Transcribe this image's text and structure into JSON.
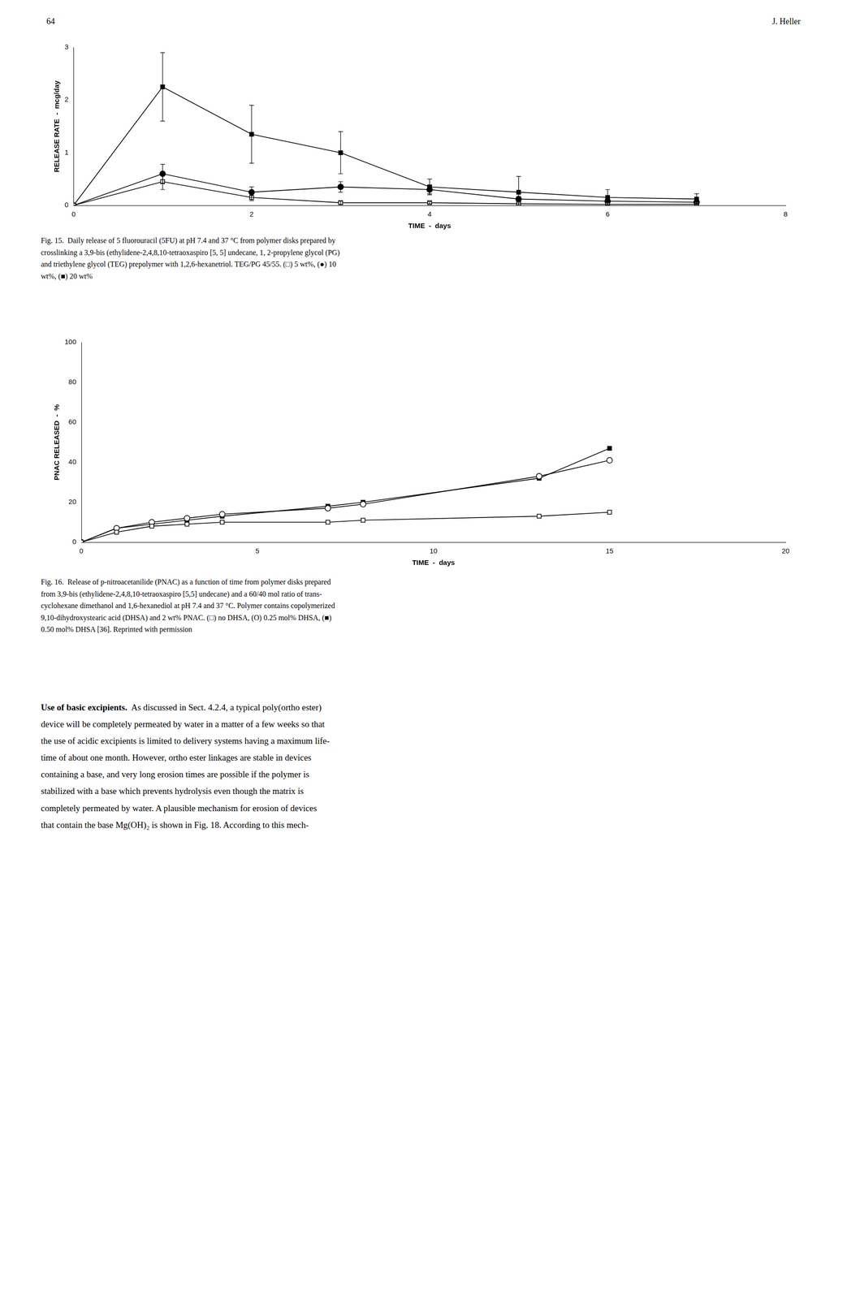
{
  "background_color": "#ffffff",
  "text_color": "#000000",
  "page_number": "64",
  "page_author": "J. Heller",
  "chart_data": [
    {
      "type": "line",
      "xlabel": "TIME  -  days",
      "ylabel": "RELEASE RATE  -  mcg/day",
      "xlim": [
        0,
        8
      ],
      "ylim": [
        0,
        3
      ],
      "xticks": [
        0,
        2,
        4,
        6,
        8
      ],
      "yticks": [
        0,
        1,
        2,
        3
      ],
      "grid": false,
      "caption": [
        "Fig. 15.  Daily release of 5 fluorouracil (5FU) at pH 7.4 and 37 °C from polymer disks prepared by",
        "crosslinking a 3,9-bis (ethylidene-2,4,8,10-tetraoxaspiro [5, 5] undecane, 1, 2-propylene glycol (PG)",
        "and triethylene glycol (TEG) prepolymer with 1,2,6-hexanetriol. TEG/PG 45/55. (□) 5 wt%, (●) 10",
        "wt%, (■) 20 wt%"
      ],
      "series": [
        {
          "marker": "open square",
          "color": "#000000",
          "x": [
            0,
            1,
            2,
            3,
            4,
            5,
            6,
            7
          ],
          "values": [
            0.0,
            0.45,
            0.15,
            0.05,
            0.05,
            0.03,
            0.02,
            0.02
          ],
          "yerr": [
            0,
            0.15,
            0.06,
            0.03,
            0.02,
            0.015,
            0.01,
            0.01
          ]
        },
        {
          "marker": "filled circle",
          "color": "#000000",
          "x": [
            0,
            1,
            2,
            3,
            4,
            5,
            6,
            7
          ],
          "values": [
            0.0,
            0.6,
            0.25,
            0.35,
            0.3,
            0.12,
            0.08,
            0.06
          ],
          "yerr": [
            0,
            0.18,
            0.1,
            0.1,
            0.08,
            0.05,
            0.03,
            0.02
          ]
        },
        {
          "marker": "filled square",
          "color": "#000000",
          "x": [
            0,
            1,
            2,
            3,
            4,
            5,
            6,
            7
          ],
          "values": [
            0.0,
            2.25,
            1.35,
            1.0,
            0.35,
            0.25,
            0.15,
            0.12
          ],
          "yerr": [
            0,
            0.65,
            0.55,
            0.4,
            0.15,
            0.3,
            0.15,
            0.1
          ]
        }
      ]
    },
    {
      "type": "line",
      "xlabel": "TIME  -  days",
      "ylabel": "PNAC RELEASED  -  %",
      "xlim": [
        0,
        20
      ],
      "ylim": [
        0,
        100
      ],
      "xticks": [
        0,
        5,
        10,
        15,
        20
      ],
      "yticks": [
        0,
        20,
        40,
        60,
        80,
        100
      ],
      "grid": false,
      "caption": [
        "Fig. 16.  Release of p-nitroacetanilide (PNAC) as a function of time from polymer disks prepared",
        "from 3,9-bis (ethylidene-2,4,8,10-tetraoxaspiro [5,5] undecane) and a 60/40 mol ratio of trans-",
        "cyclohexane dimethanol and 1,6-hexanediol at pH 7.4 and 37 °C. Polymer contains copolymerized",
        "9,10-dihydroxystearic acid (DHSA) and 2 wt% PNAC. (□) no DHSA, (O) 0.25 mol% DHSA, (■)",
        "0.50 mol% DHSA [36]. Reprinted with permission"
      ],
      "series": [
        {
          "marker": "open square",
          "color": "#000000",
          "x": [
            0,
            1,
            2,
            3,
            4,
            7,
            8,
            13,
            15
          ],
          "values": [
            0,
            5,
            8,
            9,
            10,
            10,
            11,
            13,
            15
          ]
        },
        {
          "marker": "open circle",
          "color": "#000000",
          "x": [
            0,
            1,
            2,
            3,
            4,
            7,
            8,
            13,
            15
          ],
          "values": [
            0,
            7,
            10,
            12,
            14,
            17,
            19,
            33,
            41
          ]
        },
        {
          "marker": "filled square",
          "color": "#000000",
          "x": [
            0,
            1,
            2,
            3,
            4,
            7,
            8,
            13,
            15
          ],
          "values": [
            0,
            7,
            9,
            11,
            13,
            18,
            20,
            32,
            47
          ]
        }
      ]
    }
  ],
  "body_lines": [
    "Use of basic excipients.  As discussed in Sect. 4.2.4, a typical poly(ortho ester)",
    "device will be completely permeated by water in a matter of a few weeks so that",
    "the use of acidic excipients is limited to delivery systems having a maximum life-",
    "time of about one month. However, ortho ester linkages are stable in devices",
    "containing a base, and very long erosion times are possible if the polymer is",
    "stabilized with a base which prevents hydrolysis even though the matrix is",
    "completely permeated by water. A plausible mechanism for erosion of devices",
    "that contain the base Mg(OH)₂ is shown in Fig. 18. According to this mech-"
  ]
}
